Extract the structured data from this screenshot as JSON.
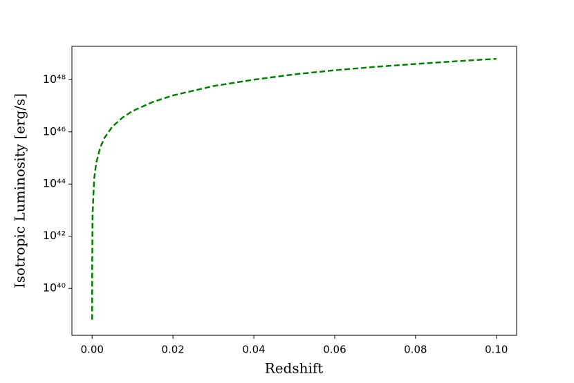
{
  "chart_data": {
    "type": "line",
    "xlabel": "Redshift",
    "ylabel": "Isotropic Luminosity [erg/s]",
    "x": [
      1e-06,
      1e-05,
      0.0001,
      0.0005,
      0.001,
      0.002,
      0.003,
      0.005,
      0.0075,
      0.01,
      0.015,
      0.02,
      0.03,
      0.04,
      0.05,
      0.06,
      0.07,
      0.08,
      0.09,
      0.1
    ],
    "values": [
      6.3e+38,
      6.3e+40,
      6.3e+42,
      1.58e+44,
      6.3e+44,
      2.5e+45,
      5.7e+45,
      1.6e+46,
      3.5e+46,
      6.3e+46,
      1.4e+47,
      2.5e+47,
      5.7e+47,
      1e+48,
      1.6e+48,
      2.3e+48,
      3.1e+48,
      4e+48,
      5.1e+48,
      6.3e+48
    ],
    "color": "#008000",
    "line_style": "dashed",
    "ylog": true,
    "xlim": [
      -0.005,
      0.105
    ],
    "ylim": [
      1.6e+38,
      1.9e+49
    ],
    "xticks": [
      {
        "value": 0,
        "label": "0.00"
      },
      0.02,
      0.04,
      0.06,
      0.08,
      {
        "value": 0.1,
        "label": "0.10"
      }
    ],
    "yticks": [
      {
        "value": 1e+40,
        "label": "10⁴⁰"
      },
      {
        "value": 1e+42,
        "label": "10⁴²"
      },
      {
        "value": 1e+44,
        "label": "10⁴⁴"
      },
      {
        "value": 1e+46,
        "label": "10⁴⁶"
      },
      {
        "value": 1e+48,
        "label": "10⁴⁸"
      }
    ],
    "grid": false
  }
}
